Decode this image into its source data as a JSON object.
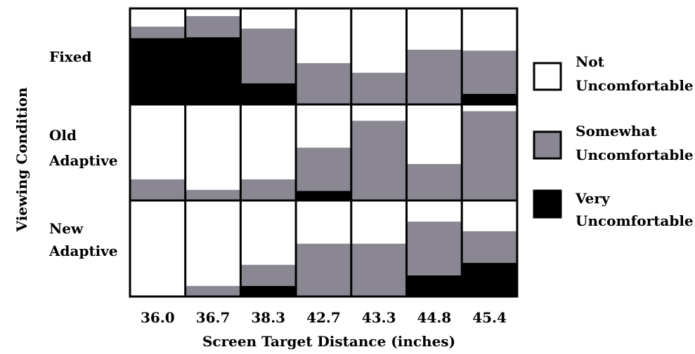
{
  "chart_data": {
    "type": "stacked-bar-grid",
    "title": "",
    "xlabel": "Screen Target Distance (inches)",
    "ylabel": "Viewing Condition",
    "categories": [
      "36.0",
      "36.7",
      "38.3",
      "42.7",
      "43.3",
      "44.8",
      "45.4"
    ],
    "conditions": [
      {
        "label_lines": [
          "Fixed"
        ],
        "series_values": {
          "not": [
            0.19,
            0.08,
            0.21,
            0.57,
            0.67,
            0.43,
            0.44
          ],
          "somewhat": [
            0.12,
            0.22,
            0.57,
            0.43,
            0.33,
            0.57,
            0.45
          ],
          "very": [
            0.69,
            0.7,
            0.22,
            0.0,
            0.0,
            0.0,
            0.11
          ]
        }
      },
      {
        "label_lines": [
          "Old",
          "Adaptive"
        ],
        "series_values": {
          "not": [
            0.78,
            0.89,
            0.78,
            0.45,
            0.17,
            0.62,
            0.07
          ],
          "somewhat": [
            0.22,
            0.11,
            0.22,
            0.45,
            0.83,
            0.38,
            0.93
          ],
          "very": [
            0.0,
            0.0,
            0.0,
            0.1,
            0.0,
            0.0,
            0.0
          ]
        }
      },
      {
        "label_lines": [
          "New",
          "Adaptive"
        ],
        "series_values": {
          "not": [
            1.0,
            0.89,
            0.67,
            0.45,
            0.45,
            0.22,
            0.32
          ],
          "somewhat": [
            0.0,
            0.11,
            0.22,
            0.55,
            0.55,
            0.56,
            0.33
          ],
          "very": [
            0.0,
            0.0,
            0.11,
            0.0,
            0.0,
            0.22,
            0.35
          ]
        }
      }
    ],
    "series": [
      {
        "key": "not",
        "label_lines": [
          "Not",
          "Uncomfortable"
        ],
        "color": "#ffffff"
      },
      {
        "key": "somewhat",
        "label_lines": [
          "Somewhat",
          "Uncomfortable"
        ],
        "color": "#8a8793"
      },
      {
        "key": "very",
        "label_lines": [
          "Very",
          "Uncomfortable"
        ],
        "color": "#000000"
      }
    ],
    "legend_position": "right",
    "grid": false
  }
}
